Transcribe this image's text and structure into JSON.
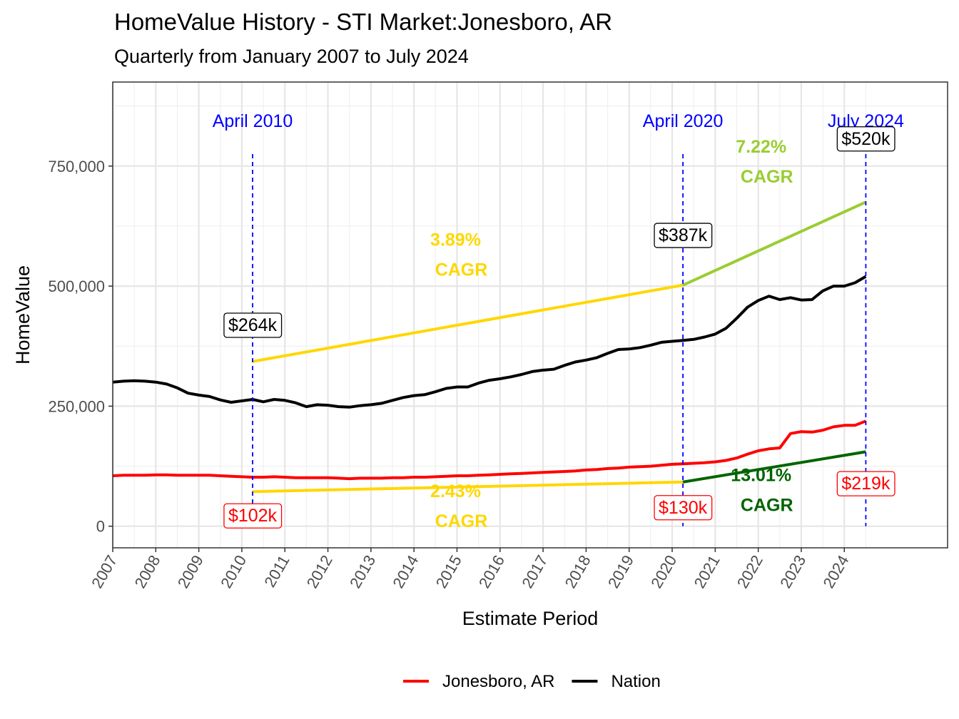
{
  "title": "HomeValue History - STI Market:Jonesboro, AR",
  "subtitle": "Quarterly from January 2007 to July 2024",
  "chart_data": {
    "type": "line",
    "xlabel": "Estimate Period",
    "ylabel": "HomeValue",
    "xlim": [
      2007,
      2026.4
    ],
    "ylim": [
      -45000,
      925000
    ],
    "x_ticks": [
      "2007",
      "2008",
      "2009",
      "2010",
      "2011",
      "2012",
      "2013",
      "2014",
      "2015",
      "2016",
      "2017",
      "2018",
      "2019",
      "2020",
      "2021",
      "2022",
      "2023",
      "2024"
    ],
    "y_ticks": [
      {
        "value": 0,
        "label": "0"
      },
      {
        "value": 250000,
        "label": "250,000"
      },
      {
        "value": 500000,
        "label": "500,000"
      },
      {
        "value": 750000,
        "label": "750,000"
      }
    ],
    "grid": true,
    "legend_position": "bottom",
    "x_axis_note": "x values are decimal years",
    "series": [
      {
        "name": "Jonesboro, AR",
        "color": "#ff0000",
        "x": [
          2007.0,
          2007.25,
          2007.5,
          2007.75,
          2008.0,
          2008.25,
          2008.5,
          2008.75,
          2009.0,
          2009.25,
          2009.5,
          2009.75,
          2010.0,
          2010.25,
          2010.5,
          2010.75,
          2011.0,
          2011.25,
          2011.5,
          2011.75,
          2012.0,
          2012.25,
          2012.5,
          2012.75,
          2013.0,
          2013.25,
          2013.5,
          2013.75,
          2014.0,
          2014.25,
          2014.5,
          2014.75,
          2015.0,
          2015.25,
          2015.5,
          2015.75,
          2016.0,
          2016.25,
          2016.5,
          2016.75,
          2017.0,
          2017.25,
          2017.5,
          2017.75,
          2018.0,
          2018.25,
          2018.5,
          2018.75,
          2019.0,
          2019.25,
          2019.5,
          2019.75,
          2020.0,
          2020.25,
          2020.5,
          2020.75,
          2021.0,
          2021.25,
          2021.5,
          2021.75,
          2022.0,
          2022.25,
          2022.5,
          2022.75,
          2023.0,
          2023.25,
          2023.5,
          2023.75,
          2024.0,
          2024.25,
          2024.5
        ],
        "y": [
          105000,
          106000,
          106000,
          106000,
          107000,
          107000,
          106000,
          106000,
          106000,
          106000,
          105000,
          104000,
          103000,
          102000,
          102000,
          103000,
          102000,
          101000,
          101000,
          101000,
          101000,
          100000,
          99000,
          100000,
          100000,
          100000,
          101000,
          101000,
          102000,
          102000,
          103000,
          104000,
          105000,
          105000,
          106000,
          107000,
          108000,
          109000,
          110000,
          111000,
          112000,
          113000,
          114000,
          115000,
          117000,
          118000,
          120000,
          121000,
          123000,
          124000,
          125000,
          127000,
          129000,
          130000,
          131000,
          132000,
          134000,
          137000,
          142000,
          150000,
          157000,
          161000,
          163000,
          193000,
          197000,
          196000,
          200000,
          207000,
          210000,
          210000,
          219000
        ]
      },
      {
        "name": "Nation",
        "color": "#000000",
        "x": [
          2007.0,
          2007.25,
          2007.5,
          2007.75,
          2008.0,
          2008.25,
          2008.5,
          2008.75,
          2009.0,
          2009.25,
          2009.5,
          2009.75,
          2010.0,
          2010.25,
          2010.5,
          2010.75,
          2011.0,
          2011.25,
          2011.5,
          2011.75,
          2012.0,
          2012.25,
          2012.5,
          2012.75,
          2013.0,
          2013.25,
          2013.5,
          2013.75,
          2014.0,
          2014.25,
          2014.5,
          2014.75,
          2015.0,
          2015.25,
          2015.5,
          2015.75,
          2016.0,
          2016.25,
          2016.5,
          2016.75,
          2017.0,
          2017.25,
          2017.5,
          2017.75,
          2018.0,
          2018.25,
          2018.5,
          2018.75,
          2019.0,
          2019.25,
          2019.5,
          2019.75,
          2020.0,
          2020.25,
          2020.5,
          2020.75,
          2021.0,
          2021.25,
          2021.5,
          2021.75,
          2022.0,
          2022.25,
          2022.5,
          2022.75,
          2023.0,
          2023.25,
          2023.5,
          2023.75,
          2024.0,
          2024.25,
          2024.5
        ],
        "y": [
          300000,
          302000,
          303000,
          302000,
          300000,
          296000,
          288000,
          277000,
          273000,
          270000,
          263000,
          258000,
          261000,
          264000,
          259000,
          264000,
          262000,
          257000,
          249000,
          253000,
          252000,
          249000,
          248000,
          251000,
          253000,
          256000,
          262000,
          268000,
          272000,
          274000,
          280000,
          287000,
          290000,
          290000,
          298000,
          304000,
          307000,
          311000,
          316000,
          322000,
          325000,
          327000,
          335000,
          342000,
          346000,
          351000,
          360000,
          368000,
          369000,
          372000,
          377000,
          383000,
          385000,
          387000,
          389000,
          394000,
          400000,
          412000,
          433000,
          456000,
          470000,
          479000,
          472000,
          476000,
          471000,
          472000,
          490000,
          500000,
          500000,
          507000,
          520000
        ]
      }
    ],
    "trend_lines": [
      {
        "from_x": 2010.25,
        "from_y": 343000,
        "to_x": 2020.25,
        "to_y": 502000,
        "color": "#ffd700",
        "label": "3.89%\nCAGR"
      },
      {
        "from_x": 2020.25,
        "from_y": 502000,
        "to_x": 2024.5,
        "to_y": 675000,
        "color": "#9acd32",
        "label": "7.22%\nCAGR"
      },
      {
        "from_x": 2010.25,
        "from_y": 72000,
        "to_x": 2020.25,
        "to_y": 92000,
        "color": "#ffd700",
        "label": "2.43%\nCAGR"
      },
      {
        "from_x": 2020.25,
        "from_y": 92000,
        "to_x": 2024.5,
        "to_y": 155000,
        "color": "#006400",
        "label": "13.01%\nCAGR"
      }
    ],
    "reference_lines": [
      {
        "x": 2010.25,
        "label": "April 2010",
        "color": "#0000ff"
      },
      {
        "x": 2020.25,
        "label": "April 2020",
        "color": "#0000ff"
      },
      {
        "x": 2024.5,
        "label": "July 2024",
        "color": "#0000ff"
      }
    ],
    "value_labels": [
      {
        "x": 2010.25,
        "y": 420000,
        "text": "$264k",
        "color": "#000000"
      },
      {
        "x": 2020.25,
        "y": 607000,
        "text": "$387k",
        "color": "#000000"
      },
      {
        "x": 2024.5,
        "y": 808000,
        "text": "$520k",
        "color": "#000000"
      },
      {
        "x": 2010.25,
        "y": 23000,
        "text": "$102k",
        "color": "#ff0000"
      },
      {
        "x": 2020.25,
        "y": 40000,
        "text": "$130k",
        "color": "#ff0000"
      },
      {
        "x": 2024.5,
        "y": 90000,
        "text": "$219k",
        "color": "#ff0000"
      }
    ],
    "cagr_labels": [
      {
        "x": 2015.1,
        "y": 566000,
        "line1": "3.89%",
        "line2": "CAGR",
        "color": "#ffd700"
      },
      {
        "x": 2022.2,
        "y": 760000,
        "line1": "7.22%",
        "line2": "CAGR",
        "color": "#9acd32"
      },
      {
        "x": 2015.1,
        "y": 43000,
        "line1": "2.43%",
        "line2": "CAGR",
        "color": "#ffd700"
      },
      {
        "x": 2022.2,
        "y": 76000,
        "line1": "13.01%",
        "line2": "CAGR",
        "color": "#006400"
      }
    ]
  }
}
